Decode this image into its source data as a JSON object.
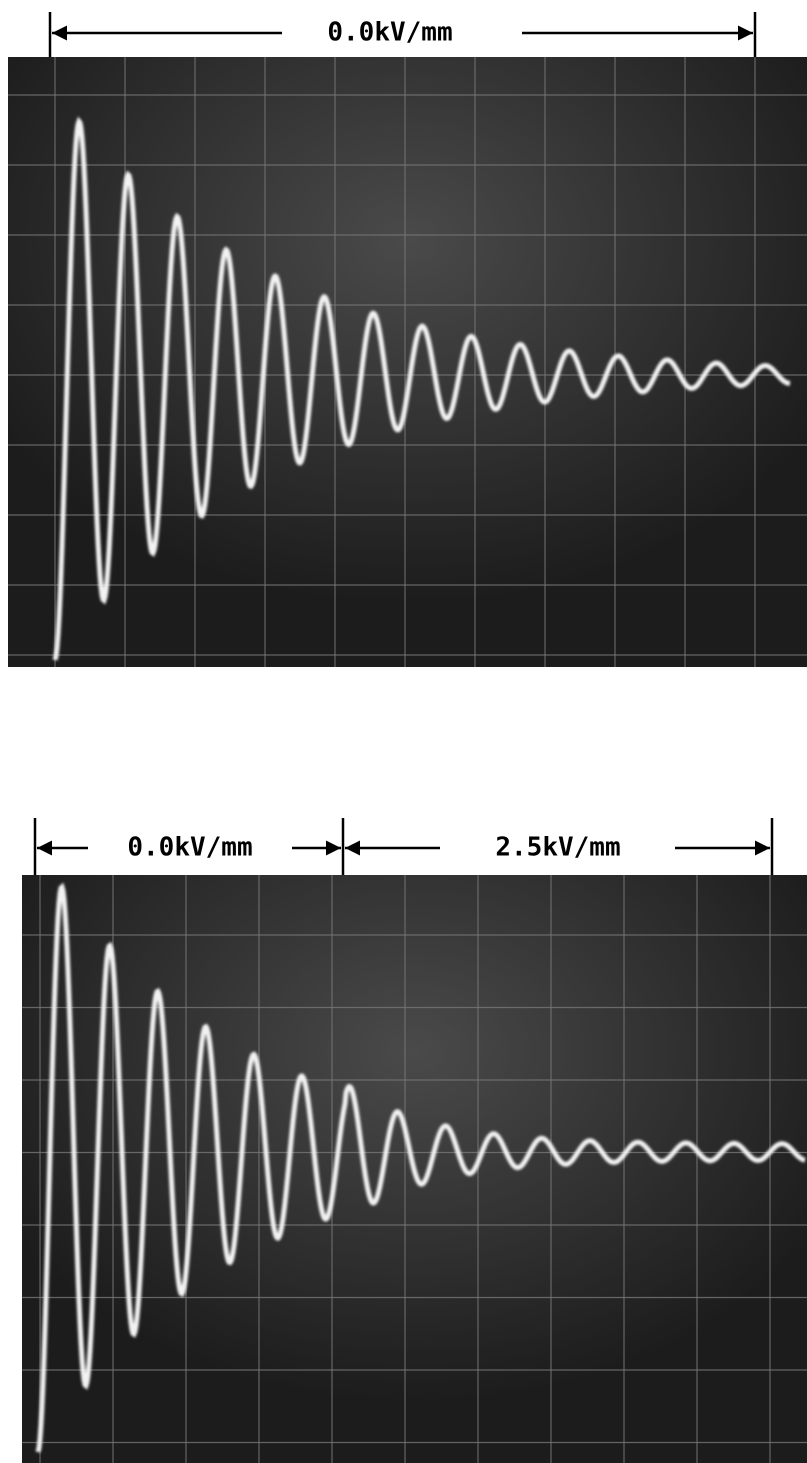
{
  "panels": [
    {
      "labels": [
        "0.0kV/mm"
      ]
    },
    {
      "labels": [
        "0.0kV/mm",
        "2.5kV/mm"
      ]
    }
  ]
}
